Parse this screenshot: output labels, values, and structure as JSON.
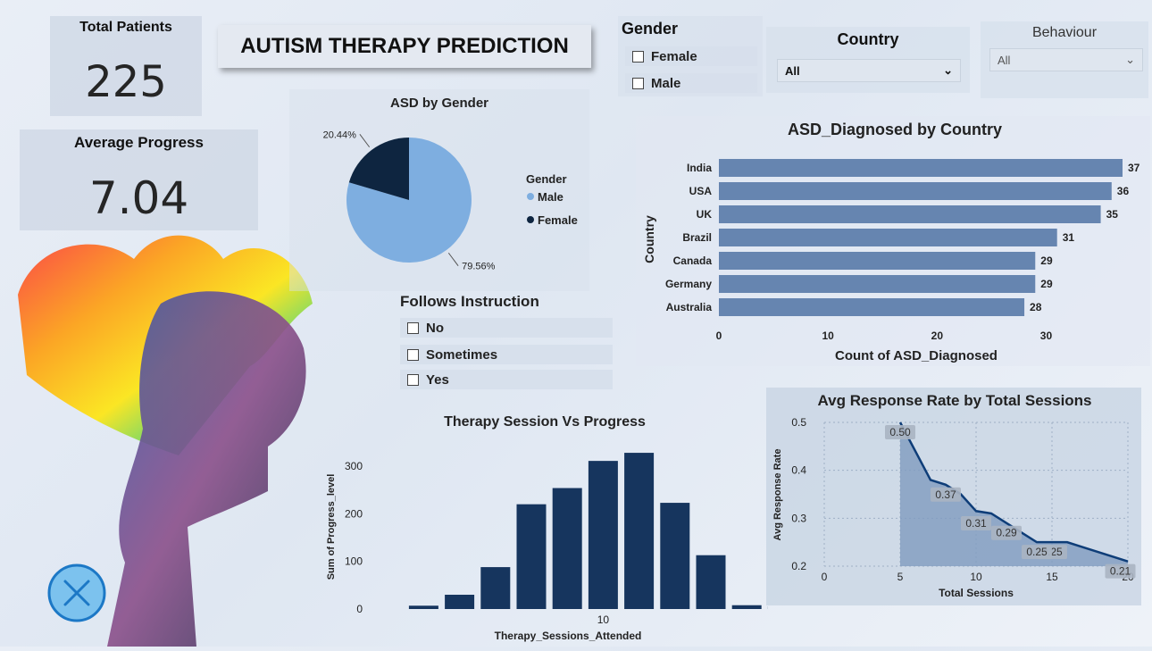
{
  "kpis": {
    "total_patients": {
      "label": "Total Patients",
      "value": "225"
    },
    "average_progress": {
      "label": "Average Progress",
      "value": "7.04"
    }
  },
  "title": "AUTISM THERAPY PREDICTION",
  "filters": {
    "gender": {
      "title": "Gender",
      "options": [
        "Female",
        "Male"
      ]
    },
    "country": {
      "title": "Country",
      "selected": "All"
    },
    "behaviour": {
      "title": "Behaviour",
      "selected": "All"
    },
    "follows_instruction": {
      "title": "Follows Instruction",
      "options": [
        "No",
        "Sometimes",
        "Yes"
      ]
    }
  },
  "colors": {
    "pie_male": "#7eaee0",
    "pie_female": "#0e2540",
    "bar_country": "#6685b0",
    "bar_session": "#16355e",
    "line": "#0e3d78",
    "area": "#7f9bbf"
  },
  "icons": {
    "close": "close-icon"
  },
  "chart_data": [
    {
      "type": "pie",
      "title": "ASD by Gender",
      "legend_title": "Gender",
      "legend": [
        "Male",
        "Female"
      ],
      "slices": [
        {
          "name": "Male",
          "value": 79.56,
          "label": "79.56%"
        },
        {
          "name": "Female",
          "value": 20.44,
          "label": "20.44%"
        }
      ]
    },
    {
      "type": "bar",
      "orientation": "horizontal",
      "title": "ASD_Diagnosed by Country",
      "xlabel": "Count of ASD_Diagnosed",
      "ylabel": "Country",
      "categories": [
        "India",
        "USA",
        "UK",
        "Brazil",
        "Canada",
        "Germany",
        "Australia"
      ],
      "values": [
        37,
        36,
        35,
        31,
        29,
        29,
        28
      ],
      "xlim": [
        0,
        37
      ],
      "xticks": [
        "0",
        "10",
        "20",
        "30"
      ]
    },
    {
      "type": "bar",
      "title": "Therapy Session Vs Progress",
      "xlabel": "Therapy_Sessions_Attended",
      "ylabel": "Sum of Progress_level",
      "x": [
        5,
        6,
        7,
        8,
        9,
        10,
        11,
        12,
        13,
        14,
        15
      ],
      "values": [
        7,
        30,
        88,
        220,
        254,
        311,
        328,
        223,
        113,
        8,
        0
      ],
      "ylim": [
        0,
        330
      ],
      "yticks": [
        "0",
        "100",
        "200",
        "300"
      ],
      "xticks": [
        "10",
        "15"
      ]
    },
    {
      "type": "area",
      "title": "Avg Response Rate by Total Sessions",
      "xlabel": "Total Sessions",
      "ylabel": "Avg Response Rate",
      "x": [
        5,
        7,
        8,
        9,
        10,
        11,
        12,
        13,
        14,
        15,
        16,
        17,
        18,
        19,
        20
      ],
      "y": [
        0.5,
        0.38,
        0.37,
        0.35,
        0.315,
        0.31,
        0.29,
        0.27,
        0.25,
        0.25,
        0.25,
        0.24,
        0.23,
        0.22,
        0.21
      ],
      "data_labels": [
        {
          "x": 5,
          "y": 0.5,
          "label": "0.50"
        },
        {
          "x": 8,
          "y": 0.37,
          "label": "0.37"
        },
        {
          "x": 10,
          "y": 0.31,
          "label": "0.31"
        },
        {
          "x": 12,
          "y": 0.29,
          "label": "0.29"
        },
        {
          "x": 15,
          "y": 0.25,
          "label": "0.25"
        },
        {
          "x": 14,
          "y": 0.25,
          "label": "0.25"
        },
        {
          "x": 19.5,
          "y": 0.21,
          "label": "0.21"
        }
      ],
      "xlim": [
        0,
        20
      ],
      "ylim": [
        0.2,
        0.5
      ],
      "xticks": [
        "0",
        "5",
        "10",
        "15",
        "20"
      ],
      "yticks": [
        "0.2",
        "0.3",
        "0.4",
        "0.5"
      ]
    }
  ]
}
